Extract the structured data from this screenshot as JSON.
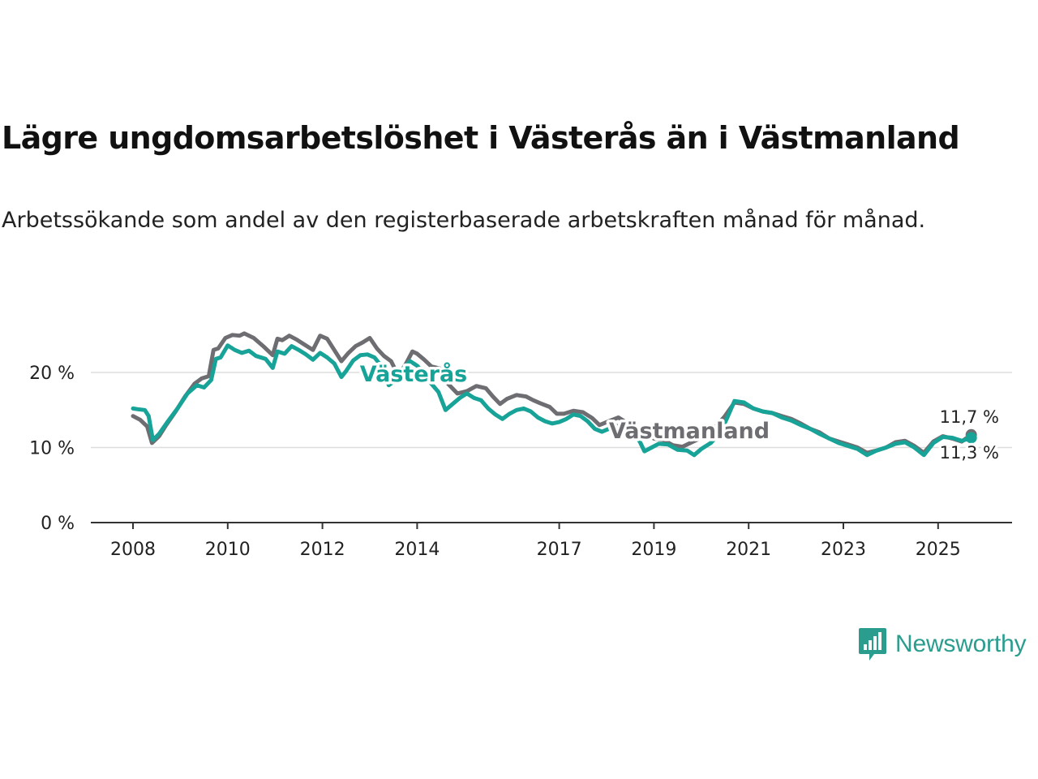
{
  "title": "Lägre ungdomsarbetslöshet i Västerås än i Västmanland",
  "subtitle": "Arbetssökande som andel av den registerbaserade arbetskraften månad för månad.",
  "brand": {
    "name": "Newsworthy",
    "icon": "newsworthy-logo-icon",
    "color": "#2a9d8f"
  },
  "colors": {
    "vasteras": "#17a398",
    "vastmanland": "#6e6e72",
    "grid": "#dddddd",
    "axis": "#333333"
  },
  "chart_data": {
    "type": "line",
    "title": "Lägre ungdomsarbetslöshet i Västerås än i Västmanland",
    "xlabel": "",
    "ylabel": "",
    "ylim": [
      0,
      25
    ],
    "xlim": [
      2008,
      2025.9
    ],
    "y_ticks": [
      0,
      10,
      20
    ],
    "y_tick_labels": [
      "0 %",
      "10 %",
      "20 %"
    ],
    "x_ticks": [
      2008,
      2010,
      2012,
      2014,
      2017,
      2019,
      2021,
      2023,
      2025
    ],
    "x_tick_labels": [
      "2008",
      "2010",
      "2012",
      "2014",
      "2017",
      "2019",
      "2021",
      "2023",
      "2025"
    ],
    "series": [
      {
        "name": "Västmanland",
        "color": "#6e6e72",
        "label": "Västmanland",
        "end_label": "11,7 %",
        "points": [
          [
            2008.0,
            14.2
          ],
          [
            2008.15,
            13.7
          ],
          [
            2008.3,
            12.8
          ],
          [
            2008.4,
            10.6
          ],
          [
            2008.55,
            11.5
          ],
          [
            2008.7,
            13
          ],
          [
            2008.9,
            14.8
          ],
          [
            2009.1,
            16.8
          ],
          [
            2009.3,
            18.5
          ],
          [
            2009.45,
            19.2
          ],
          [
            2009.6,
            19.5
          ],
          [
            2009.7,
            23.0
          ],
          [
            2009.8,
            23.2
          ],
          [
            2009.95,
            24.6
          ],
          [
            2010.1,
            25.0
          ],
          [
            2010.25,
            24.9
          ],
          [
            2010.35,
            25.2
          ],
          [
            2010.55,
            24.6
          ],
          [
            2010.75,
            23.5
          ],
          [
            2010.95,
            22.3
          ],
          [
            2011.05,
            24.5
          ],
          [
            2011.15,
            24.3
          ],
          [
            2011.3,
            24.9
          ],
          [
            2011.45,
            24.4
          ],
          [
            2011.6,
            23.8
          ],
          [
            2011.8,
            23.0
          ],
          [
            2011.95,
            24.9
          ],
          [
            2012.1,
            24.5
          ],
          [
            2012.25,
            23.0
          ],
          [
            2012.4,
            21.5
          ],
          [
            2012.55,
            22.6
          ],
          [
            2012.7,
            23.5
          ],
          [
            2012.85,
            24.0
          ],
          [
            2013.0,
            24.6
          ],
          [
            2013.15,
            23.2
          ],
          [
            2013.3,
            22.2
          ],
          [
            2013.45,
            21.5
          ],
          [
            2013.6,
            19.6
          ],
          [
            2013.75,
            21.0
          ],
          [
            2013.9,
            22.8
          ],
          [
            2014.0,
            22.5
          ],
          [
            2014.15,
            21.7
          ],
          [
            2014.3,
            20.8
          ],
          [
            2014.5,
            20.5
          ],
          [
            2014.65,
            18.5
          ],
          [
            2014.85,
            17.2
          ],
          [
            2015.05,
            17.5
          ],
          [
            2015.25,
            18.2
          ],
          [
            2015.45,
            17.9
          ],
          [
            2015.6,
            16.8
          ],
          [
            2015.75,
            15.8
          ],
          [
            2015.9,
            16.5
          ],
          [
            2016.1,
            17.0
          ],
          [
            2016.3,
            16.8
          ],
          [
            2016.45,
            16.3
          ],
          [
            2016.6,
            15.9
          ],
          [
            2016.8,
            15.4
          ],
          [
            2016.95,
            14.5
          ],
          [
            2017.1,
            14.5
          ],
          [
            2017.3,
            14.9
          ],
          [
            2017.5,
            14.7
          ],
          [
            2017.7,
            13.9
          ],
          [
            2017.85,
            13.0
          ],
          [
            2018.05,
            13.5
          ],
          [
            2018.25,
            14.0
          ],
          [
            2018.45,
            13.2
          ],
          [
            2018.6,
            12.8
          ],
          [
            2018.8,
            11.8
          ],
          [
            2019.0,
            11.2
          ],
          [
            2019.2,
            11.0
          ],
          [
            2019.4,
            10.3
          ],
          [
            2019.6,
            10.1
          ],
          [
            2019.8,
            10.7
          ],
          [
            2020.0,
            11.3
          ],
          [
            2020.2,
            12.0
          ],
          [
            2020.5,
            14.2
          ],
          [
            2020.7,
            16.0
          ],
          [
            2020.9,
            15.8
          ],
          [
            2021.1,
            15.2
          ],
          [
            2021.3,
            14.8
          ],
          [
            2021.5,
            14.6
          ],
          [
            2021.7,
            14.2
          ],
          [
            2021.9,
            13.8
          ],
          [
            2022.1,
            13.2
          ],
          [
            2022.3,
            12.5
          ],
          [
            2022.5,
            12.0
          ],
          [
            2022.7,
            11.2
          ],
          [
            2022.9,
            10.8
          ],
          [
            2023.1,
            10.4
          ],
          [
            2023.3,
            10.0
          ],
          [
            2023.5,
            9.3
          ],
          [
            2023.7,
            9.6
          ],
          [
            2023.9,
            10.0
          ],
          [
            2024.1,
            10.7
          ],
          [
            2024.3,
            10.9
          ],
          [
            2024.5,
            10.2
          ],
          [
            2024.7,
            9.3
          ],
          [
            2024.9,
            10.8
          ],
          [
            2025.1,
            11.5
          ],
          [
            2025.3,
            11.2
          ],
          [
            2025.5,
            10.8
          ],
          [
            2025.7,
            11.7
          ]
        ]
      },
      {
        "name": "Västerås",
        "color": "#17a398",
        "label": "Västerås",
        "end_label": "11,3 %",
        "points": [
          [
            2008.0,
            15.2
          ],
          [
            2008.1,
            15.1
          ],
          [
            2008.25,
            15.0
          ],
          [
            2008.33,
            14.2
          ],
          [
            2008.42,
            11.0
          ],
          [
            2008.55,
            11.8
          ],
          [
            2008.75,
            13.6
          ],
          [
            2008.95,
            15.3
          ],
          [
            2009.15,
            17.2
          ],
          [
            2009.35,
            18.3
          ],
          [
            2009.5,
            18.0
          ],
          [
            2009.65,
            19.0
          ],
          [
            2009.75,
            21.8
          ],
          [
            2009.85,
            22.0
          ],
          [
            2010.0,
            23.6
          ],
          [
            2010.15,
            23.0
          ],
          [
            2010.3,
            22.6
          ],
          [
            2010.45,
            22.9
          ],
          [
            2010.6,
            22.2
          ],
          [
            2010.8,
            21.8
          ],
          [
            2010.95,
            20.6
          ],
          [
            2011.05,
            22.8
          ],
          [
            2011.2,
            22.5
          ],
          [
            2011.35,
            23.5
          ],
          [
            2011.5,
            23.0
          ],
          [
            2011.65,
            22.4
          ],
          [
            2011.8,
            21.7
          ],
          [
            2011.95,
            22.6
          ],
          [
            2012.1,
            22.0
          ],
          [
            2012.25,
            21.2
          ],
          [
            2012.4,
            19.4
          ],
          [
            2012.5,
            20.2
          ],
          [
            2012.65,
            21.6
          ],
          [
            2012.8,
            22.3
          ],
          [
            2012.95,
            22.4
          ],
          [
            2013.1,
            22.0
          ],
          [
            2013.25,
            20.8
          ],
          [
            2013.4,
            18.3
          ],
          [
            2013.55,
            19.0
          ],
          [
            2013.7,
            20.5
          ],
          [
            2013.85,
            21.5
          ],
          [
            2014.0,
            20.9
          ],
          [
            2014.15,
            19.8
          ],
          [
            2014.3,
            18.5
          ],
          [
            2014.45,
            17.4
          ],
          [
            2014.6,
            15.0
          ],
          [
            2014.75,
            15.8
          ],
          [
            2014.9,
            16.6
          ],
          [
            2015.05,
            17.2
          ],
          [
            2015.2,
            16.6
          ],
          [
            2015.35,
            16.3
          ],
          [
            2015.5,
            15.2
          ],
          [
            2015.65,
            14.4
          ],
          [
            2015.8,
            13.8
          ],
          [
            2015.95,
            14.5
          ],
          [
            2016.1,
            15.0
          ],
          [
            2016.25,
            15.2
          ],
          [
            2016.4,
            14.8
          ],
          [
            2016.55,
            14.0
          ],
          [
            2016.7,
            13.5
          ],
          [
            2016.85,
            13.2
          ],
          [
            2017.0,
            13.4
          ],
          [
            2017.15,
            13.8
          ],
          [
            2017.3,
            14.4
          ],
          [
            2017.45,
            14.2
          ],
          [
            2017.6,
            13.5
          ],
          [
            2017.75,
            12.5
          ],
          [
            2017.9,
            12.1
          ],
          [
            2018.05,
            12.5
          ],
          [
            2018.2,
            12.9
          ],
          [
            2018.4,
            12.6
          ],
          [
            2018.55,
            12.0
          ],
          [
            2018.7,
            10.8
          ],
          [
            2018.8,
            9.5
          ],
          [
            2018.95,
            10.0
          ],
          [
            2019.1,
            10.5
          ],
          [
            2019.3,
            10.4
          ],
          [
            2019.5,
            9.7
          ],
          [
            2019.7,
            9.6
          ],
          [
            2019.85,
            9.0
          ],
          [
            2020.0,
            9.8
          ],
          [
            2020.2,
            10.6
          ],
          [
            2020.4,
            12.0
          ],
          [
            2020.55,
            14.0
          ],
          [
            2020.7,
            16.2
          ],
          [
            2020.9,
            16.0
          ],
          [
            2021.1,
            15.2
          ],
          [
            2021.3,
            14.8
          ],
          [
            2021.5,
            14.6
          ],
          [
            2021.7,
            14.0
          ],
          [
            2021.9,
            13.6
          ],
          [
            2022.1,
            13.0
          ],
          [
            2022.3,
            12.5
          ],
          [
            2022.5,
            11.8
          ],
          [
            2022.7,
            11.2
          ],
          [
            2022.9,
            10.6
          ],
          [
            2023.1,
            10.2
          ],
          [
            2023.3,
            9.8
          ],
          [
            2023.5,
            9.0
          ],
          [
            2023.7,
            9.6
          ],
          [
            2023.9,
            10.0
          ],
          [
            2024.1,
            10.5
          ],
          [
            2024.3,
            10.7
          ],
          [
            2024.5,
            10.0
          ],
          [
            2024.7,
            9.0
          ],
          [
            2024.9,
            10.6
          ],
          [
            2025.1,
            11.4
          ],
          [
            2025.3,
            11.3
          ],
          [
            2025.5,
            10.9
          ],
          [
            2025.7,
            11.3
          ]
        ]
      }
    ]
  }
}
